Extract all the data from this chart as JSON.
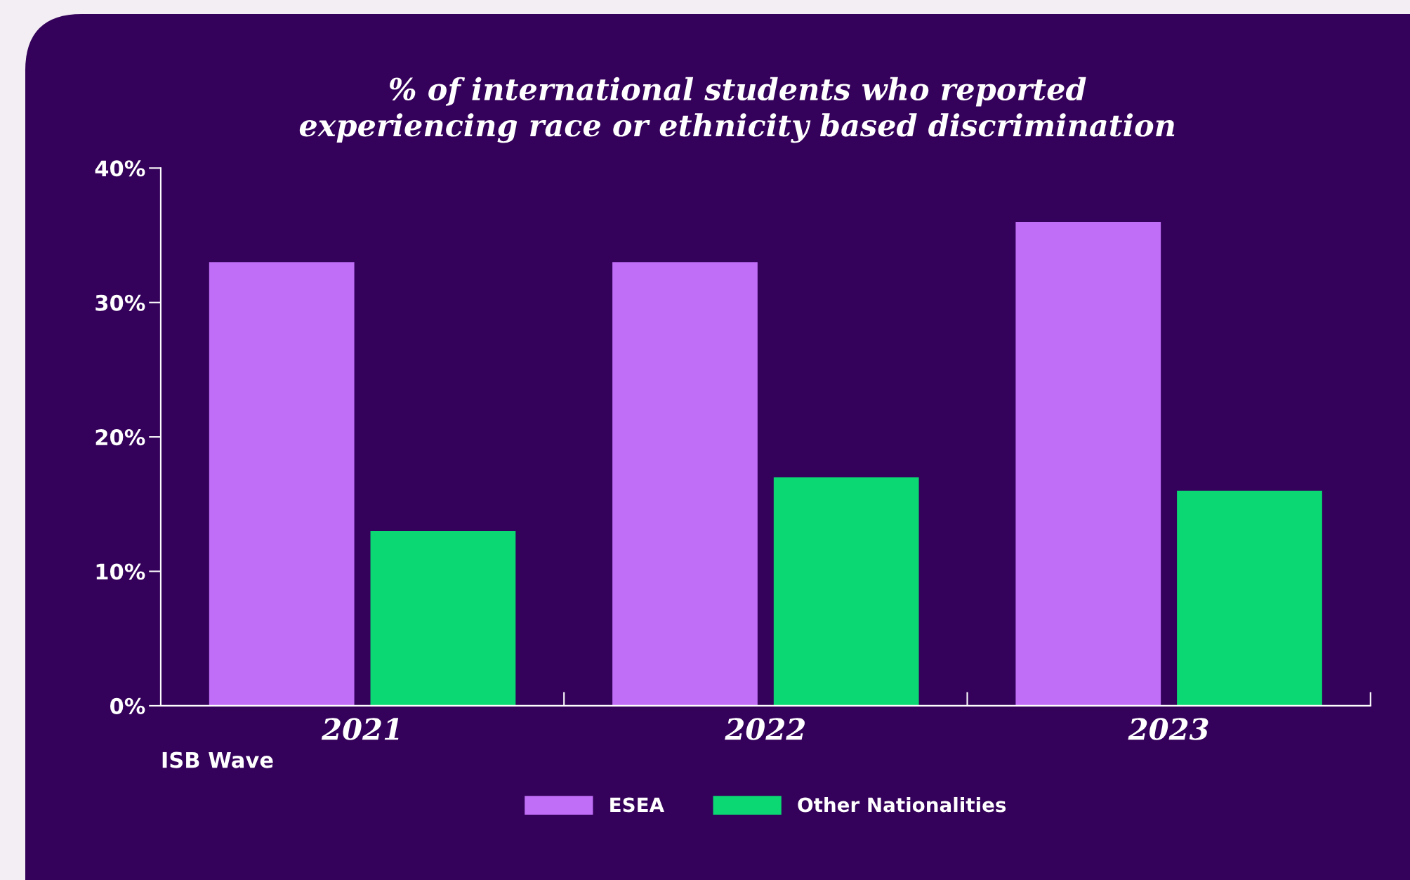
{
  "chart_data": {
    "type": "bar",
    "title": "% of international students who reported\nexperiencing race or ethnicity based discrimination",
    "xlabel": "ISB Wave",
    "categories": [
      "2021",
      "2022",
      "2023"
    ],
    "series": [
      {
        "name": "ESEA",
        "color": "#c06ef7",
        "values": [
          33,
          33,
          36
        ]
      },
      {
        "name": "Other Nationalities",
        "color": "#0bd872",
        "values": [
          13,
          17,
          16
        ]
      }
    ],
    "ylim": [
      0,
      40
    ],
    "yticks": [
      {
        "value": 0,
        "label": "0%"
      },
      {
        "value": 10,
        "label": "10%"
      },
      {
        "value": 20,
        "label": "20%"
      },
      {
        "value": 30,
        "label": "30%"
      },
      {
        "value": 40,
        "label": "40%"
      }
    ],
    "grid": false,
    "legend": "bottom"
  }
}
